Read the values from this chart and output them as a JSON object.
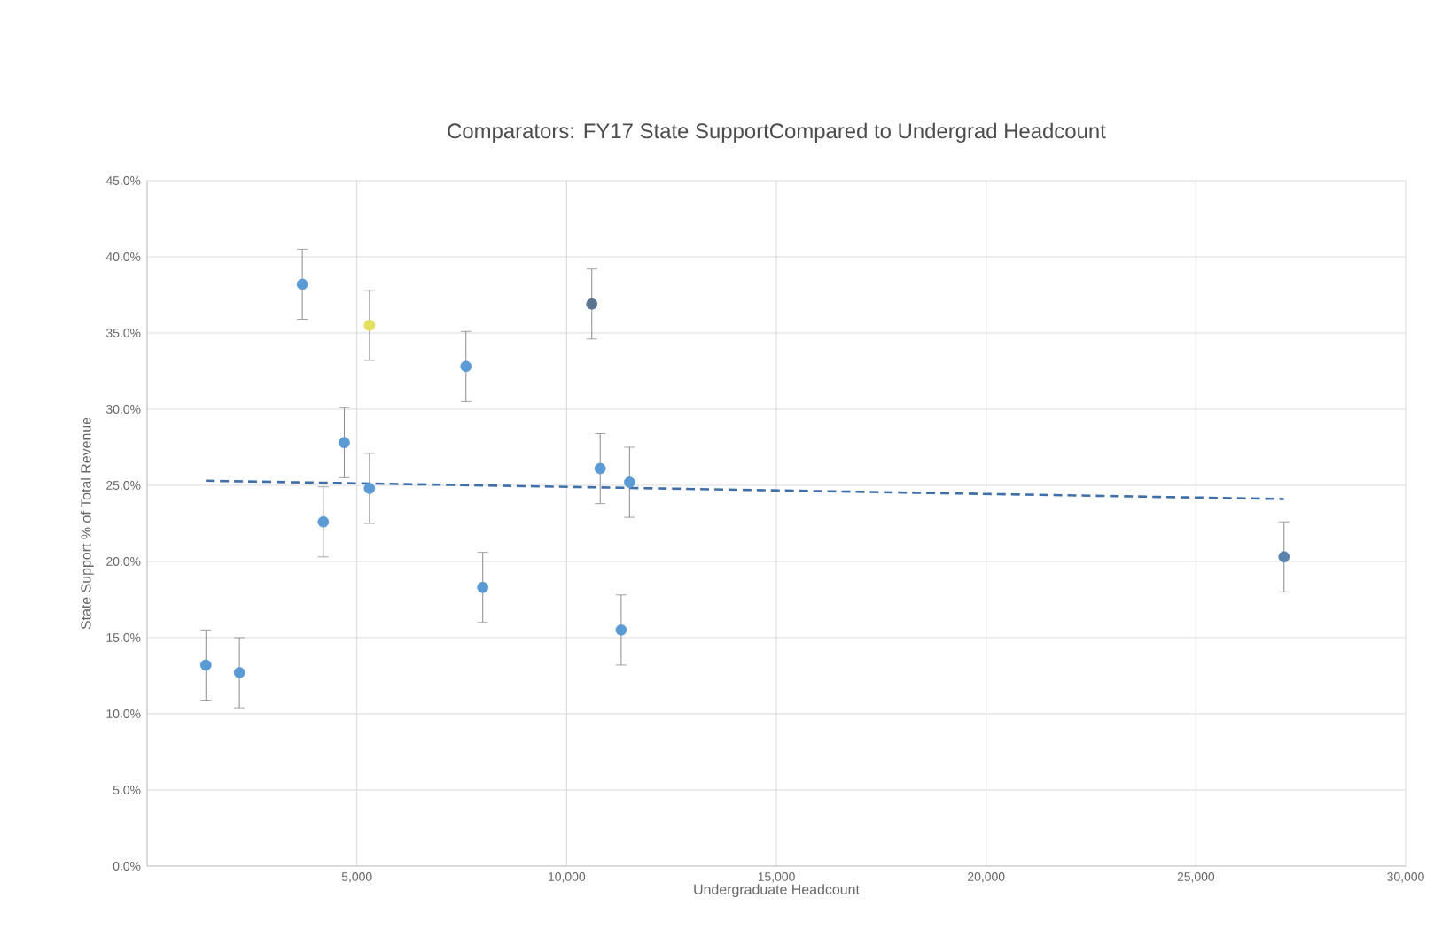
{
  "chart_data": {
    "type": "scatter",
    "title": "Comparators: FY17 State SupportCompared to Undergrad Headcount",
    "xlabel": "Undergraduate Headcount",
    "ylabel": "State Support  % of Total Revenue",
    "xlim": [
      0,
      30000
    ],
    "ylim": [
      0,
      45
    ],
    "xticks": [
      {
        "value": 0,
        "label": null
      },
      {
        "value": 5000,
        "label": "5,000"
      },
      {
        "value": 10000,
        "label": "10,000"
      },
      {
        "value": 15000,
        "label": "15,000"
      },
      {
        "value": 20000,
        "label": "20,000"
      },
      {
        "value": 25000,
        "label": "25,000"
      },
      {
        "value": 30000,
        "label": "30,000"
      }
    ],
    "yticks": [
      {
        "value": 0,
        "label": "0.0%"
      },
      {
        "value": 5,
        "label": "5.0%"
      },
      {
        "value": 10,
        "label": "10.0%"
      },
      {
        "value": 15,
        "label": "15.0%"
      },
      {
        "value": 20,
        "label": "20.0%"
      },
      {
        "value": 25,
        "label": "25.0%"
      },
      {
        "value": 30,
        "label": "30.0%"
      },
      {
        "value": 35,
        "label": "35.0%"
      },
      {
        "value": 40,
        "label": "40.0%"
      },
      {
        "value": 45,
        "label": "45.0%"
      }
    ],
    "grid": true,
    "series": [
      {
        "type": "scatter",
        "marker": "circle",
        "x": [
          1400,
          2200,
          3700,
          4200,
          4700,
          5300,
          5300,
          7600,
          8000,
          10600,
          10800,
          11300,
          11500,
          27100
        ],
        "values": [
          13.2,
          12.7,
          38.2,
          22.6,
          27.8,
          24.8,
          35.5,
          32.8,
          18.3,
          36.9,
          26.1,
          15.5,
          25.2,
          20.3
        ],
        "errors": [
          2.3,
          2.3,
          2.3,
          2.3,
          2.3,
          2.3,
          2.3,
          2.3,
          2.3,
          2.3,
          2.3,
          2.3,
          2.3,
          2.3
        ],
        "colors": [
          "#5b9bd5",
          "#5b9bd5",
          "#5b9bd5",
          "#5b9bd5",
          "#5b9bd5",
          "#5b9bd5",
          "#e2e060",
          "#5b9bd5",
          "#5b9bd5",
          "#5a7490",
          "#5b9bd5",
          "#5b9bd5",
          "#5b9bd5",
          "#5a84ad"
        ]
      },
      {
        "type": "line",
        "x": [
          1400,
          27100
        ],
        "values": [
          25.3,
          24.1
        ],
        "color": "#3f6fa8",
        "line_style": "dashed",
        "marker": "none"
      }
    ]
  }
}
